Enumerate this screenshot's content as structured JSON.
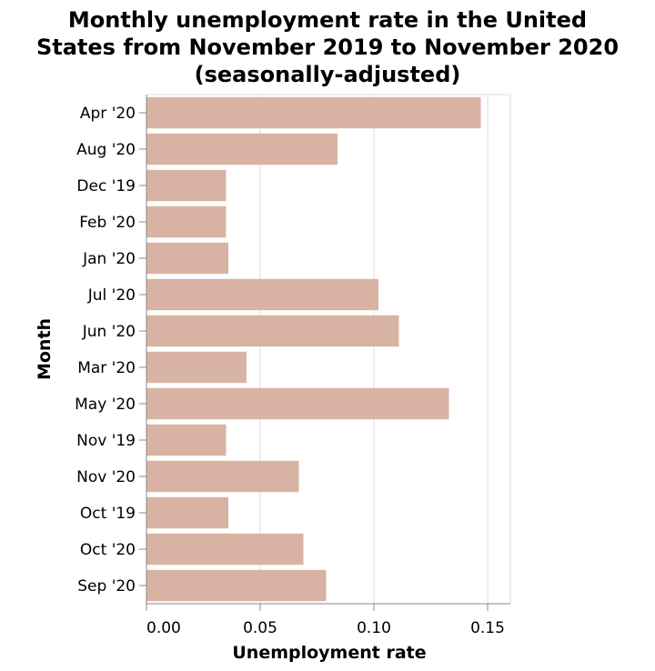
{
  "chart_data": {
    "type": "bar",
    "orientation": "horizontal",
    "title": [
      "Monthly unemployment rate in the United",
      "States from November 2019 to November 2020",
      "(seasonally-adjusted)"
    ],
    "xlabel": "Unemployment rate",
    "ylabel": "Month",
    "categories": [
      "Apr '20",
      "Aug '20",
      "Dec '19",
      "Feb '20",
      "Jan '20",
      "Jul '20",
      "Jun '20",
      "Mar '20",
      "May '20",
      "Nov '19",
      "Nov '20",
      "Oct '19",
      "Oct '20",
      "Sep '20"
    ],
    "values": [
      0.147,
      0.084,
      0.035,
      0.035,
      0.036,
      0.102,
      0.111,
      0.044,
      0.133,
      0.035,
      0.067,
      0.036,
      0.069,
      0.079
    ],
    "xlim": [
      0,
      0.16
    ],
    "xticks": [
      "0.00",
      "0.05",
      "0.10",
      "0.15"
    ],
    "xtick_values": [
      0,
      0.05,
      0.1,
      0.15
    ],
    "grid": true,
    "bar_color": "#d8b3a4"
  }
}
